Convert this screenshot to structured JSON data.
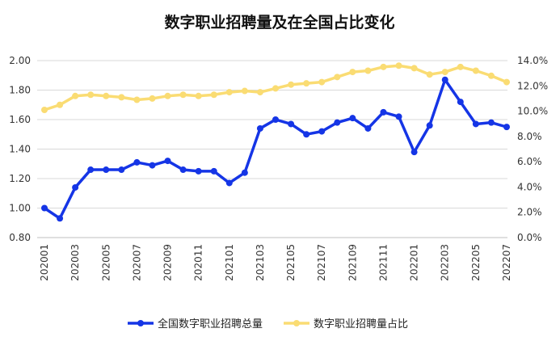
{
  "chart_data": {
    "type": "line",
    "title": "数字职业招聘量及在全国占比变化",
    "x": [
      "202001",
      "202002",
      "202003",
      "202004",
      "202005",
      "202006",
      "202007",
      "202008",
      "202009",
      "202010",
      "202011",
      "202012",
      "202101",
      "202102",
      "202103",
      "202104",
      "202105",
      "202106",
      "202107",
      "202108",
      "202109",
      "202110",
      "202111",
      "202112",
      "202201",
      "202202",
      "202203",
      "202204",
      "202205",
      "202206",
      "202207"
    ],
    "x_tick_labels": [
      "202001",
      "202003",
      "202005",
      "202007",
      "202009",
      "202011",
      "202101",
      "202103",
      "202105",
      "202107",
      "202109",
      "202111",
      "202201",
      "202203",
      "202205",
      "202207"
    ],
    "y_left": {
      "range": [
        0.8,
        2.0
      ],
      "ticks": [
        "0.80",
        "1.00",
        "1.20",
        "1.40",
        "1.60",
        "1.80",
        "2.00"
      ]
    },
    "y_right": {
      "range": [
        0,
        14
      ],
      "ticks": [
        "0.0%",
        "2.0%",
        "4.0%",
        "6.0%",
        "8.0%",
        "10.0%",
        "12.0%",
        "14.0%"
      ]
    },
    "grid": true,
    "legend_position": "bottom",
    "series": [
      {
        "name": "全国数字职业招聘总量",
        "axis": "left",
        "color": "#1535e6",
        "values": [
          1.0,
          0.93,
          1.14,
          1.26,
          1.26,
          1.26,
          1.31,
          1.29,
          1.32,
          1.26,
          1.25,
          1.25,
          1.17,
          1.24,
          1.54,
          1.6,
          1.57,
          1.5,
          1.52,
          1.58,
          1.61,
          1.54,
          1.65,
          1.62,
          1.38,
          1.56,
          1.87,
          1.72,
          1.57,
          1.58,
          1.55
        ]
      },
      {
        "name": "数字职业招聘量占比",
        "axis": "right",
        "color": "#fadc73",
        "values": [
          10.1,
          10.5,
          11.2,
          11.3,
          11.2,
          11.1,
          10.9,
          11.0,
          11.2,
          11.3,
          11.2,
          11.3,
          11.5,
          11.6,
          11.5,
          11.8,
          12.1,
          12.2,
          12.3,
          12.7,
          13.1,
          13.2,
          13.5,
          13.6,
          13.4,
          12.9,
          13.1,
          13.5,
          13.2,
          12.8,
          12.3
        ]
      }
    ]
  }
}
